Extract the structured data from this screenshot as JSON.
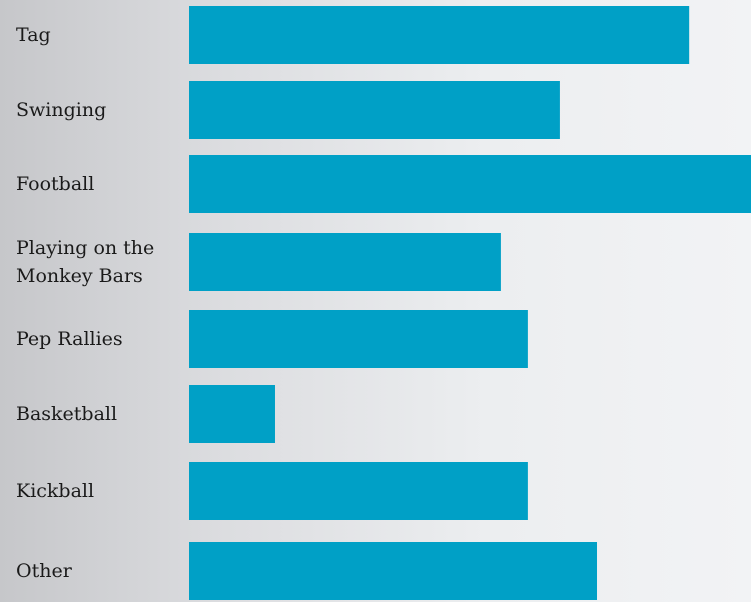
{
  "colors": {
    "bar": "#00a0c6",
    "label": "#1a1a1a"
  },
  "chart_data": {
    "type": "bar",
    "orientation": "horizontal",
    "categories": [
      "Tag",
      "Swinging",
      "Football",
      "Playing on the Monkey Bars",
      "Pep Rallies",
      "Basketball",
      "Kickball",
      "Other"
    ],
    "series": [
      {
        "values": [
          8.9,
          6.6,
          10.0,
          5.55,
          6.03,
          1.53,
          6.03,
          7.26
        ]
      }
    ],
    "xlim": [
      0,
      10
    ],
    "grid": false,
    "legend": "none",
    "title": "",
    "xlabel": "",
    "ylabel": ""
  }
}
